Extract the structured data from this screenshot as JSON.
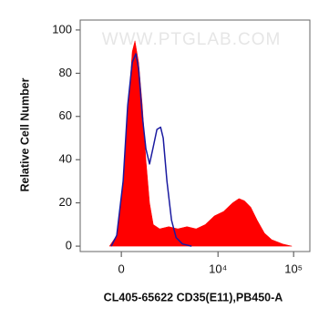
{
  "chart_data": {
    "type": "histogram",
    "watermark": "WWW.PTGLAB.COM",
    "x_label": "CL405-65622 CD35(E11),PB450-A",
    "y_label": "Relative Cell Number",
    "xlim": [
      -1700,
      164000
    ],
    "ylim": [
      -2.5,
      104.6
    ],
    "xticks": [
      0,
      {
        "value": 10000,
        "label": "10⁴"
      },
      {
        "value": 100000,
        "label": "10⁵"
      }
    ],
    "yticks": [
      0,
      20,
      40,
      60,
      80,
      100
    ],
    "series": [
      {
        "color": "#ff0000",
        "filled": true,
        "x": [
          -391,
          -147,
          59,
          207,
          359,
          454,
          585,
          724,
          870,
          1028,
          1200,
          1536,
          2123,
          2860,
          3835,
          5104,
          6761,
          8943,
          11830,
          15620,
          18980,
          22420,
          27210,
          33040,
          41240,
          51500,
          71870,
          94760
        ],
        "values": [
          0,
          5,
          30,
          60,
          90,
          95,
          85,
          65,
          40,
          20,
          10,
          8,
          9,
          8,
          9,
          8,
          10,
          14,
          16,
          20,
          22,
          21,
          18,
          12,
          6,
          3,
          1,
          0
        ]
      },
      {
        "color": "#1a1aa0",
        "filled": false,
        "x": [
          -329,
          -147,
          59,
          207,
          359,
          486,
          585,
          724,
          870,
          1028,
          1200,
          1386,
          1589,
          1750,
          1992,
          2322,
          2699,
          3317,
          4429
        ],
        "values": [
          0,
          5,
          30,
          65,
          85,
          89,
          82,
          60,
          45,
          38,
          46,
          54,
          55,
          50,
          30,
          12,
          4,
          1,
          0
        ]
      }
    ]
  }
}
